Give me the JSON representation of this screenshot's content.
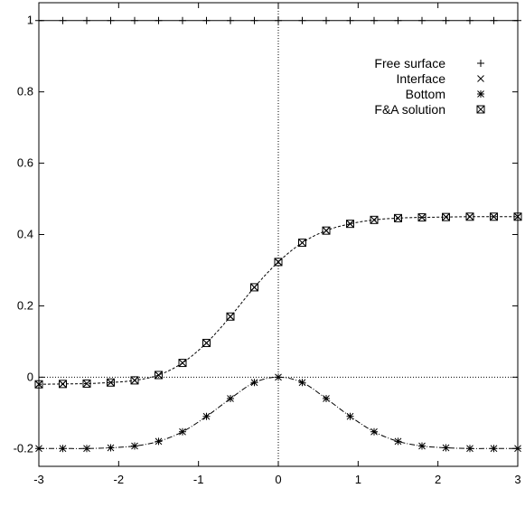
{
  "chart_data": {
    "type": "line",
    "title": "",
    "xlabel": "",
    "ylabel": "",
    "xlim": [
      -3,
      3
    ],
    "ylim": [
      -0.25,
      1.05
    ],
    "x_ticks": [
      -3,
      -2,
      -1,
      0,
      1,
      2,
      3
    ],
    "y_ticks": [
      -0.2,
      0,
      0.2,
      0.4,
      0.6,
      0.8,
      1
    ],
    "x_tick_labels": [
      "-3",
      "-2",
      "-1",
      "0",
      "1",
      "2",
      "3"
    ],
    "y_tick_labels": [
      "-0.2",
      "0",
      "0.2",
      "0.4",
      "0.6",
      "0.8",
      "1"
    ],
    "legend_position": "top-right",
    "grid": false,
    "zero_axes": true,
    "series": [
      {
        "name": "Free surface",
        "marker": "plus",
        "line": "solid",
        "x": [
          -3,
          -2.7,
          -2.4,
          -2.1,
          -1.8,
          -1.5,
          -1.2,
          -0.9,
          -0.6,
          -0.3,
          0,
          0.3,
          0.6,
          0.9,
          1.2,
          1.5,
          1.8,
          2.1,
          2.4,
          2.7,
          3
        ],
        "y": [
          1,
          1,
          1,
          1,
          1,
          1,
          1,
          1,
          1,
          1,
          1,
          1,
          1,
          1,
          1,
          1,
          1,
          1,
          1,
          1,
          1
        ]
      },
      {
        "name": "Interface",
        "marker": "cross",
        "line": "dashed",
        "x": [
          -3,
          -2.7,
          -2.4,
          -2.1,
          -1.8,
          -1.5,
          -1.2,
          -0.9,
          -0.6,
          -0.3,
          0,
          0.3,
          0.6,
          0.9,
          1.2,
          1.5,
          1.8,
          2.1,
          2.4,
          2.7,
          3
        ],
        "y": [
          -0.02,
          -0.019,
          -0.018,
          -0.015,
          -0.009,
          0.006,
          0.04,
          0.096,
          0.17,
          0.252,
          0.323,
          0.377,
          0.411,
          0.43,
          0.441,
          0.446,
          0.448,
          0.449,
          0.45,
          0.45,
          0.45
        ]
      },
      {
        "name": "Bottom",
        "marker": "star",
        "line": "dash-dot",
        "x": [
          -3,
          -2.7,
          -2.4,
          -2.1,
          -1.8,
          -1.5,
          -1.2,
          -0.9,
          -0.6,
          -0.3,
          0,
          0.3,
          0.6,
          0.9,
          1.2,
          1.5,
          1.8,
          2.1,
          2.4,
          2.7,
          3
        ],
        "y": [
          -0.2,
          -0.2,
          -0.2,
          -0.198,
          -0.193,
          -0.18,
          -0.153,
          -0.11,
          -0.06,
          -0.015,
          0,
          -0.015,
          -0.06,
          -0.11,
          -0.153,
          -0.18,
          -0.193,
          -0.198,
          -0.2,
          -0.2,
          -0.2
        ]
      },
      {
        "name": "F&A solution",
        "marker": "boxed-cross",
        "line": "none",
        "x": [
          -3,
          -2.7,
          -2.4,
          -2.1,
          -1.8,
          -1.5,
          -1.2,
          -0.9,
          -0.6,
          -0.3,
          0,
          0.3,
          0.6,
          0.9,
          1.2,
          1.5,
          1.8,
          2.1,
          2.4,
          2.7,
          3
        ],
        "y": [
          -0.02,
          -0.019,
          -0.018,
          -0.015,
          -0.009,
          0.006,
          0.04,
          0.096,
          0.17,
          0.252,
          0.323,
          0.377,
          0.411,
          0.43,
          0.441,
          0.446,
          0.448,
          0.449,
          0.45,
          0.45,
          0.45
        ]
      }
    ]
  }
}
